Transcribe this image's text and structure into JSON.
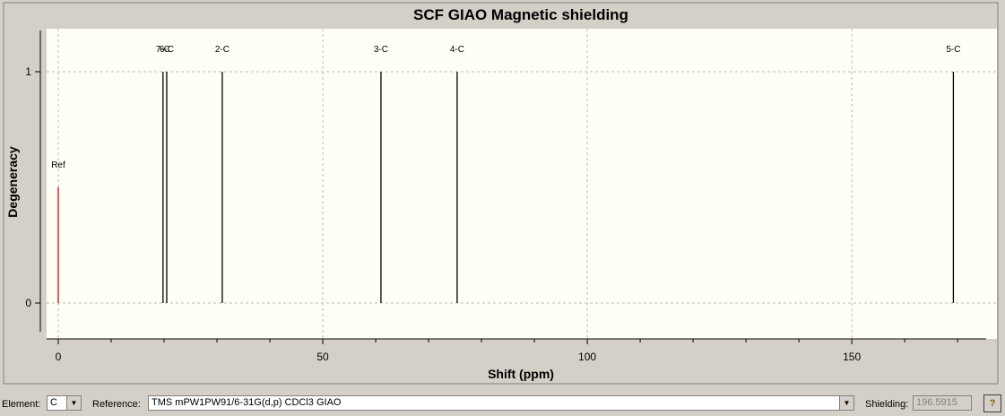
{
  "chart_data": {
    "type": "stick",
    "title": "SCF GIAO Magnetic shielding",
    "xlabel": "Shift (ppm)",
    "ylabel": "Degeneracy",
    "x": [
      0,
      19.8,
      20.5,
      31.0,
      61.0,
      75.4,
      169.2
    ],
    "values": [
      0.5,
      1,
      1,
      1,
      1,
      1,
      1
    ],
    "labels": [
      "Ref",
      "7-C",
      "6-C",
      "2-C",
      "3-C",
      "4-C",
      "5-C"
    ],
    "colors": [
      "#e00000",
      "#000000",
      "#000000",
      "#000000",
      "#000000",
      "#000000",
      "#000000"
    ],
    "xlim": [
      -2.2,
      175.4
    ],
    "ylim": [
      -0.155,
      1.186
    ],
    "xticks": [
      0,
      50,
      100,
      150
    ],
    "xminor": [
      10,
      20,
      30,
      40,
      60,
      70,
      80,
      90,
      110,
      120,
      130,
      140,
      160,
      170
    ],
    "yticks": [
      0,
      1
    ],
    "grid": true
  },
  "controls": {
    "element_label": "Element:",
    "element": "C",
    "reference_label": "Reference:",
    "reference": "TMS mPW1PW91/6-31G(d,p) CDCl3 GIAO",
    "shielding_label": "Shielding:",
    "shielding": "196.5915",
    "help": "?"
  }
}
